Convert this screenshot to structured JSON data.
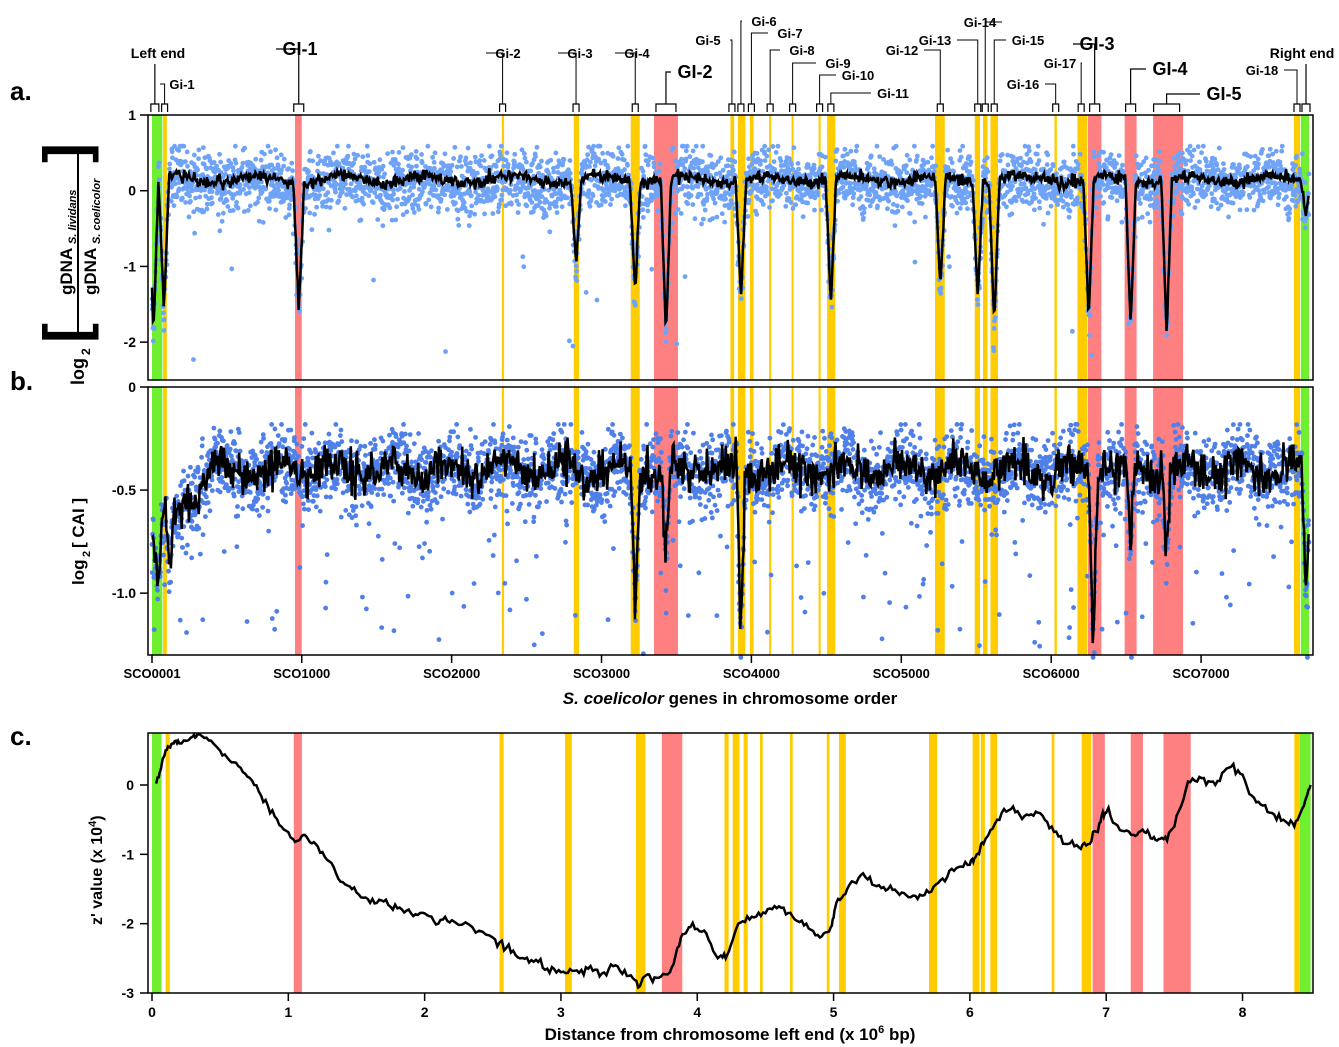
{
  "colors": {
    "green": "#6fef2f",
    "yellow": "#ffcc00",
    "red": "#ff8080",
    "points_a": "#6fa3f7",
    "points_b": "#4f7fe8",
    "line": "#000000"
  },
  "panel_letters": [
    "a.",
    "b.",
    "c."
  ],
  "annotations": {
    "left_end": "Left end",
    "right_end": "Right end",
    "islands_major": [
      {
        "label": "GI-1",
        "gene": 980
      },
      {
        "label": "GI-2",
        "gene": 3430
      },
      {
        "label": "GI-3",
        "gene": 6290
      },
      {
        "label": "GI-4",
        "gene": 6530
      },
      {
        "label": "GI-5",
        "gene": 6770
      }
    ],
    "islands_minor": [
      {
        "label": "Gi-1",
        "gene": 85
      },
      {
        "label": "Gi-2",
        "gene": 2340
      },
      {
        "label": "Gi-3",
        "gene": 2830
      },
      {
        "label": "Gi-4",
        "gene": 3225
      },
      {
        "label": "Gi-5",
        "gene": 3870
      },
      {
        "label": "Gi-6",
        "gene": 3930
      },
      {
        "label": "Gi-7",
        "gene": 4000
      },
      {
        "label": "Gi-8",
        "gene": 4125
      },
      {
        "label": "Gi-9",
        "gene": 4275
      },
      {
        "label": "Gi-10",
        "gene": 4455
      },
      {
        "label": "Gi-11",
        "gene": 4530
      },
      {
        "label": "Gi-12",
        "gene": 5260
      },
      {
        "label": "Gi-13",
        "gene": 5510
      },
      {
        "label": "Gi-14",
        "gene": 5560
      },
      {
        "label": "Gi-15",
        "gene": 5620
      },
      {
        "label": "Gi-16",
        "gene": 6030
      },
      {
        "label": "Gi-17",
        "gene": 6200
      },
      {
        "label": "Gi-18",
        "gene": 7640
      }
    ]
  },
  "chart_data": [
    {
      "panel": "a",
      "type": "scatter",
      "ylabel_main": "log",
      "ylabel_sub": "2",
      "ratio_numerator": "gDNA",
      "ratio_numerator_sub": "S. lividans",
      "ratio_denominator": "gDNA",
      "ratio_denominator_sub": "S. coelicolor",
      "ylim": [
        -2.5,
        1
      ],
      "yticks": [
        "1",
        "0",
        "-1",
        "-2"
      ],
      "ytick_values": [
        1,
        0,
        -1,
        -2
      ],
      "xlim": [
        1,
        7720
      ],
      "points": "about 7,700 genes; values near 0.2 with spread about 0.2, dropping to about -1 to -2 inside the marked islands",
      "dips_gene_value": [
        [
          10,
          -1.85
        ],
        [
          80,
          -1.6
        ],
        [
          980,
          -1.6
        ],
        [
          2830,
          -1.0
        ],
        [
          3225,
          -1.3
        ],
        [
          3430,
          -1.9
        ],
        [
          3930,
          -1.4
        ],
        [
          4530,
          -1.5
        ],
        [
          5260,
          -1.3
        ],
        [
          5510,
          -1.4
        ],
        [
          5620,
          -1.8
        ],
        [
          6250,
          -1.7
        ],
        [
          6530,
          -1.8
        ],
        [
          6770,
          -1.9
        ],
        [
          7700,
          -0.3
        ]
      ],
      "baseline": 0.15
    },
    {
      "panel": "b",
      "type": "scatter",
      "ylabel_main": "log",
      "ylabel_sub": "2",
      "ylabel_rest": "[ CAI ]",
      "ylim": [
        -1.3,
        0
      ],
      "yticks": [
        "0",
        "-0.5",
        "-1.0"
      ],
      "ytick_values": [
        0,
        -0.5,
        -1.0
      ],
      "xlim": [
        1,
        7720
      ],
      "xticks": [
        "SCO0001",
        "SCO1000",
        "SCO2000",
        "SCO3000",
        "SCO4000",
        "SCO5000",
        "SCO6000",
        "SCO7000"
      ],
      "xtick_values": [
        1,
        1000,
        2000,
        3000,
        4000,
        5000,
        6000,
        7000
      ],
      "xlabel_italic": "S. coelicolor",
      "xlabel_rest": " genes in chromosome order",
      "dips_gene_value": [
        [
          40,
          -0.95
        ],
        [
          120,
          -0.85
        ],
        [
          3225,
          -1.05
        ],
        [
          3430,
          -0.85
        ],
        [
          3930,
          -1.2
        ],
        [
          6280,
          -1.25
        ],
        [
          6530,
          -0.8
        ],
        [
          6770,
          -0.8
        ],
        [
          7700,
          -1.0
        ]
      ],
      "baseline": -0.4
    },
    {
      "panel": "c",
      "type": "line",
      "ylabel_main": "z' value (x 10",
      "ylabel_sup": "4",
      "ylabel_end": ")",
      "ylim": [
        -3,
        0.75
      ],
      "yticks": [
        "0",
        "-1",
        "-2",
        "-3"
      ],
      "ytick_values": [
        0,
        -1,
        -2,
        -3
      ],
      "xlim": [
        -0.05,
        8.55
      ],
      "xticks": [
        "0",
        "1",
        "2",
        "3",
        "4",
        "5",
        "6",
        "7",
        "8"
      ],
      "xtick_values": [
        0,
        1,
        2,
        3,
        4,
        5,
        6,
        7,
        8
      ],
      "xlabel_main": "Distance from chromosome left end (x 10",
      "xlabel_sup": "6",
      "xlabel_end": " bp)",
      "curve_x": [
        0.03,
        0.06,
        0.1,
        0.15,
        0.2,
        0.3,
        0.35,
        0.45,
        0.55,
        0.65,
        0.75,
        0.85,
        0.95,
        1.05,
        1.12,
        1.2,
        1.3,
        1.4,
        1.5,
        1.6,
        1.7,
        1.8,
        1.9,
        2.0,
        2.1,
        2.2,
        2.35,
        2.5,
        2.6,
        2.7,
        2.8,
        2.9,
        3.0,
        3.1,
        3.2,
        3.3,
        3.4,
        3.5,
        3.58,
        3.62,
        3.7,
        3.8,
        3.88,
        3.95,
        4.05,
        4.15,
        4.22,
        4.3,
        4.4,
        4.5,
        4.6,
        4.7,
        4.8,
        4.9,
        4.98,
        5.02,
        5.1,
        5.2,
        5.3,
        5.4,
        5.5,
        5.6,
        5.7,
        5.8,
        5.9,
        6.0,
        6.05,
        6.1,
        6.2,
        6.3,
        6.4,
        6.5,
        6.6,
        6.7,
        6.8,
        6.88,
        6.95,
        7.0,
        7.1,
        7.2,
        7.28,
        7.35,
        7.42,
        7.5,
        7.6,
        7.7,
        7.8,
        7.9,
        8.0,
        8.1,
        8.2,
        8.3,
        8.38,
        8.45,
        8.5
      ],
      "curve_y": [
        0.02,
        0.2,
        0.5,
        0.6,
        0.6,
        0.7,
        0.73,
        0.6,
        0.4,
        0.25,
        0.0,
        -0.3,
        -0.6,
        -0.82,
        -0.72,
        -0.85,
        -1.1,
        -1.4,
        -1.55,
        -1.7,
        -1.68,
        -1.78,
        -1.85,
        -1.85,
        -2.0,
        -1.95,
        -2.05,
        -2.2,
        -2.35,
        -2.5,
        -2.55,
        -2.65,
        -2.7,
        -2.68,
        -2.65,
        -2.72,
        -2.6,
        -2.75,
        -2.9,
        -2.75,
        -2.78,
        -2.7,
        -2.2,
        -2.05,
        -2.1,
        -2.5,
        -2.45,
        -2.0,
        -1.9,
        -1.85,
        -1.75,
        -1.9,
        -2.0,
        -2.2,
        -2.05,
        -1.7,
        -1.5,
        -1.3,
        -1.45,
        -1.5,
        -1.55,
        -1.6,
        -1.55,
        -1.35,
        -1.2,
        -1.15,
        -1.0,
        -0.85,
        -0.5,
        -0.35,
        -0.45,
        -0.4,
        -0.6,
        -0.85,
        -0.9,
        -0.85,
        -0.55,
        -0.4,
        -0.65,
        -0.72,
        -0.68,
        -0.75,
        -0.78,
        -0.6,
        0.05,
        0.1,
        0.0,
        0.25,
        0.15,
        -0.25,
        -0.4,
        -0.5,
        -0.6,
        -0.3,
        0.0
      ]
    }
  ],
  "shaded_regions": {
    "gene_axis": [
      {
        "color": "green",
        "from": 1,
        "to": 70
      },
      {
        "color": "yellow",
        "from": 75,
        "to": 100
      },
      {
        "color": "red",
        "from": 955,
        "to": 1000
      },
      {
        "color": "yellow",
        "from": 2335,
        "to": 2350
      },
      {
        "color": "yellow",
        "from": 2815,
        "to": 2850
      },
      {
        "color": "yellow",
        "from": 3195,
        "to": 3255
      },
      {
        "color": "red",
        "from": 3350,
        "to": 3510
      },
      {
        "color": "yellow",
        "from": 3860,
        "to": 3885
      },
      {
        "color": "yellow",
        "from": 3910,
        "to": 3960
      },
      {
        "color": "yellow",
        "from": 3990,
        "to": 4015
      },
      {
        "color": "yellow",
        "from": 4118,
        "to": 4132
      },
      {
        "color": "yellow",
        "from": 4268,
        "to": 4282
      },
      {
        "color": "yellow",
        "from": 4448,
        "to": 4462
      },
      {
        "color": "yellow",
        "from": 4505,
        "to": 4560
      },
      {
        "color": "yellow",
        "from": 5225,
        "to": 5290
      },
      {
        "color": "yellow",
        "from": 5490,
        "to": 5525
      },
      {
        "color": "yellow",
        "from": 5545,
        "to": 5575
      },
      {
        "color": "yellow",
        "from": 5595,
        "to": 5645
      },
      {
        "color": "yellow",
        "from": 6022,
        "to": 6038
      },
      {
        "color": "yellow",
        "from": 6175,
        "to": 6240
      },
      {
        "color": "red",
        "from": 6245,
        "to": 6335
      },
      {
        "color": "red",
        "from": 6490,
        "to": 6570
      },
      {
        "color": "red",
        "from": 6680,
        "to": 6880
      },
      {
        "color": "yellow",
        "from": 7620,
        "to": 7660
      },
      {
        "color": "green",
        "from": 7665,
        "to": 7720
      }
    ],
    "distance_axis": [
      {
        "color": "green",
        "from": 0.0,
        "to": 0.07
      },
      {
        "color": "yellow",
        "from": 0.1,
        "to": 0.13
      },
      {
        "color": "red",
        "from": 1.04,
        "to": 1.1
      },
      {
        "color": "yellow",
        "from": 2.55,
        "to": 2.58
      },
      {
        "color": "yellow",
        "from": 3.03,
        "to": 3.08
      },
      {
        "color": "yellow",
        "from": 3.55,
        "to": 3.62
      },
      {
        "color": "red",
        "from": 3.74,
        "to": 3.89
      },
      {
        "color": "yellow",
        "from": 4.2,
        "to": 4.23
      },
      {
        "color": "yellow",
        "from": 4.26,
        "to": 4.31
      },
      {
        "color": "yellow",
        "from": 4.34,
        "to": 4.37
      },
      {
        "color": "yellow",
        "from": 4.46,
        "to": 4.48
      },
      {
        "color": "yellow",
        "from": 4.68,
        "to": 4.7
      },
      {
        "color": "yellow",
        "from": 4.95,
        "to": 4.97
      },
      {
        "color": "yellow",
        "from": 5.04,
        "to": 5.09
      },
      {
        "color": "yellow",
        "from": 5.7,
        "to": 5.76
      },
      {
        "color": "yellow",
        "from": 6.02,
        "to": 6.07
      },
      {
        "color": "yellow",
        "from": 6.08,
        "to": 6.11
      },
      {
        "color": "yellow",
        "from": 6.15,
        "to": 6.2
      },
      {
        "color": "yellow",
        "from": 6.6,
        "to": 6.62
      },
      {
        "color": "yellow",
        "from": 6.82,
        "to": 6.89
      },
      {
        "color": "red",
        "from": 6.9,
        "to": 6.99
      },
      {
        "color": "red",
        "from": 7.18,
        "to": 7.27
      },
      {
        "color": "red",
        "from": 7.42,
        "to": 7.62
      },
      {
        "color": "yellow",
        "from": 8.38,
        "to": 8.42
      },
      {
        "color": "green",
        "from": 8.42,
        "to": 8.5
      }
    ]
  }
}
